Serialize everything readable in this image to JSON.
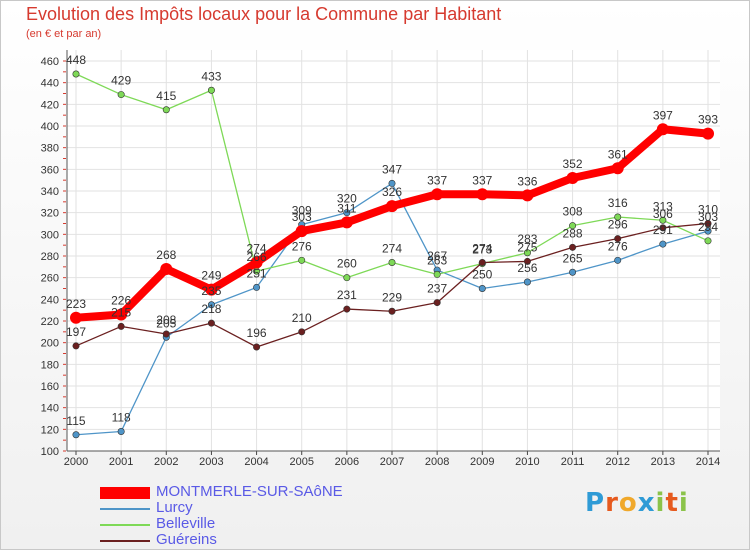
{
  "header": {
    "title": "Evolution des Impôts locaux pour la Commune par Habitant",
    "subtitle": "(en € et par an)"
  },
  "chart_data": {
    "type": "line",
    "title": "Evolution des Impôts locaux pour la Commune par Habitant",
    "subtitle": "(en € et par an)",
    "xlabel": "",
    "ylabel": "",
    "x": [
      2000,
      2001,
      2002,
      2003,
      2004,
      2005,
      2006,
      2007,
      2008,
      2009,
      2010,
      2011,
      2012,
      2013,
      2014
    ],
    "ylim": [
      100,
      460
    ],
    "yticks": [
      100,
      120,
      140,
      160,
      180,
      200,
      220,
      240,
      260,
      280,
      300,
      320,
      340,
      360,
      380,
      400,
      420,
      440,
      460
    ],
    "grid": true,
    "legend_position": "bottom-left",
    "series": [
      {
        "name": "MONTMERLE-SUR-SAôNE",
        "color": "#ff0000",
        "values": [
          223,
          226,
          268,
          249,
          274,
          303,
          311,
          326,
          337,
          337,
          336,
          352,
          361,
          397,
          393
        ]
      },
      {
        "name": "Lurcy",
        "color": "#4f95c8",
        "values": [
          115,
          118,
          205,
          235,
          251,
          309,
          320,
          347,
          267,
          250,
          256,
          265,
          276,
          291,
          303
        ]
      },
      {
        "name": "Belleville",
        "color": "#7ed957",
        "values": [
          448,
          429,
          415,
          433,
          266,
          276,
          260,
          274,
          263,
          273,
          283,
          308,
          316,
          313,
          294
        ]
      },
      {
        "name": "Guéreins",
        "color": "#6b2020",
        "values": [
          197,
          215,
          208,
          218,
          196,
          210,
          231,
          229,
          237,
          274,
          275,
          288,
          296,
          306,
          310
        ]
      }
    ]
  },
  "legend": {
    "items": [
      {
        "label": "MONTMERLE-SUR-SAôNE",
        "color": "#ff0000"
      },
      {
        "label": "Lurcy",
        "color": "#4f95c8"
      },
      {
        "label": "Belleville",
        "color": "#7ed957"
      },
      {
        "label": "Guéreins",
        "color": "#6b2020"
      }
    ]
  },
  "logo": {
    "text": "Proxiti",
    "letters": [
      {
        "char": "P",
        "color": "#2f9bd6"
      },
      {
        "char": "r",
        "color": "#e65a1e"
      },
      {
        "char": "o",
        "color": "#f0a82b"
      },
      {
        "char": "x",
        "color": "#2f9bd6"
      },
      {
        "char": "i",
        "color": "#8bc34a"
      },
      {
        "char": "t",
        "color": "#e65a1e"
      },
      {
        "char": "i",
        "color": "#8bc34a"
      }
    ]
  }
}
